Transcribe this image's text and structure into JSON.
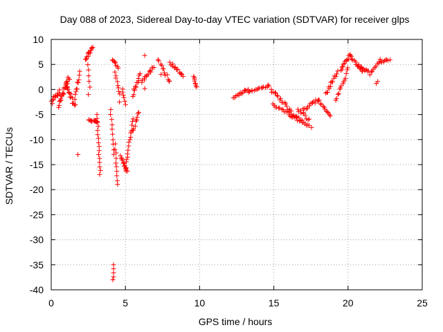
{
  "chart_data": {
    "type": "scatter",
    "title": "Day 088 of 2023, Sidereal Day-to-day VTEC variation (SDTVAR) for receiver glps",
    "xlabel": "GPS time / hours",
    "ylabel": "SDTVAR / TECUs",
    "xlim": [
      0,
      25
    ],
    "ylim": [
      -40,
      10
    ],
    "xticks": [
      0,
      5,
      10,
      15,
      20,
      25
    ],
    "yticks": [
      10,
      5,
      0,
      -5,
      -10,
      -15,
      -20,
      -25,
      -30,
      -35,
      -40
    ],
    "grid": true,
    "marker": "+",
    "color": "#ff0000",
    "segments": [
      {
        "x": [
          0.0,
          0.6
        ],
        "y": [
          -2.5,
          -0.5
        ],
        "n": 14,
        "jitter": 1.2
      },
      {
        "x": [
          0.5,
          1.2
        ],
        "y": [
          -3.5,
          2.5
        ],
        "n": 22,
        "jitter": 1.2
      },
      {
        "x": [
          1.0,
          1.6
        ],
        "y": [
          1.0,
          -3.5
        ],
        "n": 16,
        "jitter": 1.0
      },
      {
        "x": [
          1.6,
          1.9
        ],
        "y": [
          -2.0,
          3.5
        ],
        "n": 10,
        "jitter": 0.8
      },
      {
        "x": [
          2.3,
          2.8
        ],
        "y": [
          6.0,
          8.5
        ],
        "n": 14,
        "jitter": 0.6
      },
      {
        "x": [
          2.5,
          2.6
        ],
        "y": [
          5.0,
          0.5
        ],
        "n": 5,
        "jitter": 0.2
      },
      {
        "x": [
          2.5,
          3.1
        ],
        "y": [
          -6.0,
          -6.5
        ],
        "n": 12,
        "jitter": 0.3
      },
      {
        "x": [
          3.1,
          3.3
        ],
        "y": [
          -5.0,
          -17.0
        ],
        "n": 16,
        "jitter": 0.1
      },
      {
        "x": [
          4.1,
          4.5
        ],
        "y": [
          6.0,
          4.5
        ],
        "n": 8,
        "jitter": 0.5
      },
      {
        "x": [
          4.3,
          4.6
        ],
        "y": [
          3.5,
          -1.0
        ],
        "n": 8,
        "jitter": 0.5
      },
      {
        "x": [
          4.0,
          4.2
        ],
        "y": [
          -4.0,
          -13.0
        ],
        "n": 10,
        "jitter": 0.2
      },
      {
        "x": [
          4.3,
          4.5
        ],
        "y": [
          -11.0,
          -19.0
        ],
        "n": 10,
        "jitter": 0.3
      },
      {
        "x": [
          4.7,
          5.1
        ],
        "y": [
          -13.5,
          -16.5
        ],
        "n": 12,
        "jitter": 0.6
      },
      {
        "x": [
          4.8,
          5.0
        ],
        "y": [
          0.0,
          -3.0
        ],
        "n": 6,
        "jitter": 0.4
      },
      {
        "x": [
          5.0,
          5.5
        ],
        "y": [
          -16.0,
          -6.0
        ],
        "n": 16,
        "jitter": 0.8
      },
      {
        "x": [
          5.4,
          5.9
        ],
        "y": [
          -9.0,
          -4.5
        ],
        "n": 10,
        "jitter": 0.8
      },
      {
        "x": [
          5.5,
          6.0
        ],
        "y": [
          -1.0,
          3.0
        ],
        "n": 12,
        "jitter": 0.8
      },
      {
        "x": [
          6.1,
          6.9
        ],
        "y": [
          1.5,
          4.5
        ],
        "n": 14,
        "jitter": 0.7
      },
      {
        "x": [
          7.2,
          8.0
        ],
        "y": [
          6.0,
          1.5
        ],
        "n": 12,
        "jitter": 0.6
      },
      {
        "x": [
          8.0,
          8.9
        ],
        "y": [
          5.5,
          2.5
        ],
        "n": 14,
        "jitter": 0.8
      },
      {
        "x": [
          9.6,
          9.8
        ],
        "y": [
          2.5,
          0.5
        ],
        "n": 8,
        "jitter": 0.4
      },
      {
        "x": [
          12.3,
          13.3
        ],
        "y": [
          -1.5,
          0.0
        ],
        "n": 14,
        "jitter": 0.5
      },
      {
        "x": [
          13.3,
          14.7
        ],
        "y": [
          -0.5,
          0.8
        ],
        "n": 16,
        "jitter": 0.4
      },
      {
        "x": [
          14.8,
          16.2
        ],
        "y": [
          0.0,
          -4.5
        ],
        "n": 18,
        "jitter": 0.7
      },
      {
        "x": [
          14.9,
          16.9
        ],
        "y": [
          -3.0,
          -6.0
        ],
        "n": 20,
        "jitter": 0.5
      },
      {
        "x": [
          16.0,
          17.5
        ],
        "y": [
          -5.0,
          -7.5
        ],
        "n": 16,
        "jitter": 0.4
      },
      {
        "x": [
          16.6,
          17.4
        ],
        "y": [
          -4.0,
          -6.0
        ],
        "n": 10,
        "jitter": 0.6
      },
      {
        "x": [
          17.0,
          18.0
        ],
        "y": [
          -4.0,
          -2.0
        ],
        "n": 14,
        "jitter": 0.6
      },
      {
        "x": [
          18.0,
          18.8
        ],
        "y": [
          -2.0,
          -5.5
        ],
        "n": 12,
        "jitter": 0.5
      },
      {
        "x": [
          18.5,
          19.3
        ],
        "y": [
          -1.0,
          3.5
        ],
        "n": 14,
        "jitter": 0.7
      },
      {
        "x": [
          19.2,
          20.0
        ],
        "y": [
          -2.0,
          4.0
        ],
        "n": 14,
        "jitter": 0.8
      },
      {
        "x": [
          19.5,
          20.2
        ],
        "y": [
          4.0,
          7.0
        ],
        "n": 14,
        "jitter": 0.6
      },
      {
        "x": [
          20.2,
          21.0
        ],
        "y": [
          6.5,
          3.5
        ],
        "n": 12,
        "jitter": 0.4
      },
      {
        "x": [
          20.6,
          21.4
        ],
        "y": [
          5.0,
          3.5
        ],
        "n": 12,
        "jitter": 0.5
      },
      {
        "x": [
          21.5,
          22.2
        ],
        "y": [
          3.0,
          6.0
        ],
        "n": 10,
        "jitter": 0.4
      },
      {
        "x": [
          22.2,
          22.8
        ],
        "y": [
          5.5,
          6.0
        ],
        "n": 8,
        "jitter": 0.3
      }
    ],
    "points": [
      {
        "x": 1.8,
        "y": -13.0
      },
      {
        "x": 2.5,
        "y": -1.0
      },
      {
        "x": 6.3,
        "y": 6.8
      },
      {
        "x": 4.2,
        "y": -35.0
      },
      {
        "x": 4.2,
        "y": -35.8
      },
      {
        "x": 4.2,
        "y": -36.6
      },
      {
        "x": 4.2,
        "y": -37.4
      },
      {
        "x": 4.15,
        "y": -38.0
      },
      {
        "x": 6.3,
        "y": 0.2
      },
      {
        "x": 7.4,
        "y": 3.0
      },
      {
        "x": 21.9,
        "y": 1.2
      },
      {
        "x": 22.0,
        "y": 1.6
      },
      {
        "x": 4.6,
        "y": -2.5
      },
      {
        "x": 3.0,
        "y": -6.3
      }
    ]
  }
}
